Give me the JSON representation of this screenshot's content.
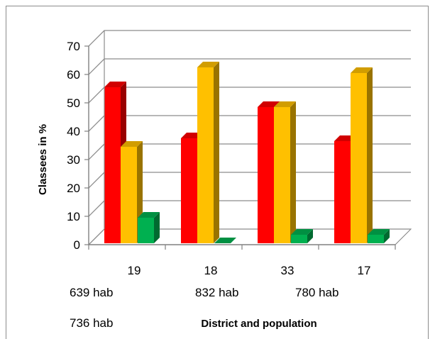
{
  "chart_data": {
    "type": "bar",
    "style": "3d-clustered-column",
    "title": "",
    "xlabel": "District and population",
    "ylabel": "Classees in %",
    "ylim": [
      0,
      70
    ],
    "yticks": [
      "0",
      "10",
      "20",
      "30",
      "40",
      "50",
      "60",
      "70"
    ],
    "categories": [
      "19",
      "18",
      "33",
      "17"
    ],
    "population_labels": [
      "639 hab",
      "832 hab",
      "780 hab",
      "736 hab"
    ],
    "series": [
      {
        "color": "#ff0000",
        "values": [
          55,
          37,
          48,
          36
        ]
      },
      {
        "color": "#ffc000",
        "values": [
          34,
          62,
          48,
          60
        ]
      },
      {
        "color": "#00b050",
        "values": [
          9,
          0,
          3,
          3
        ]
      }
    ],
    "grid": true,
    "legend": "none"
  }
}
